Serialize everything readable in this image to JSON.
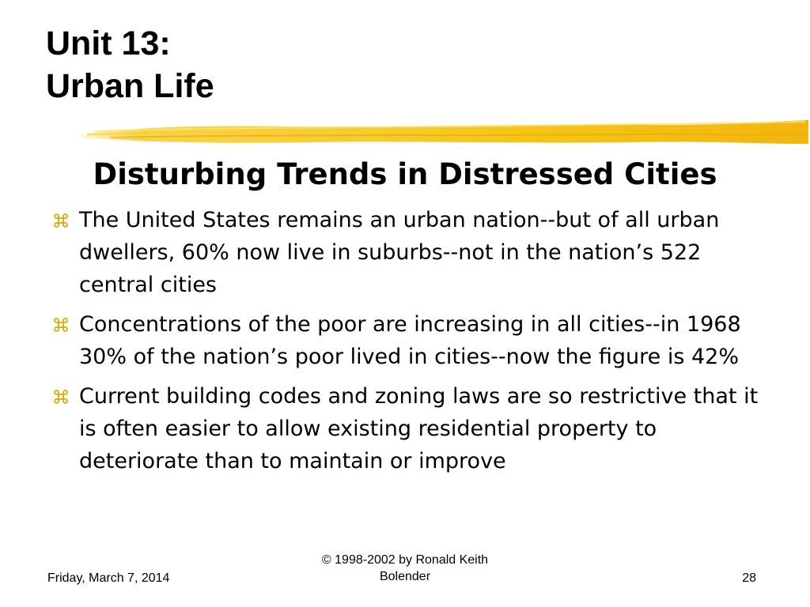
{
  "slide": {
    "title_line1": "Unit 13:",
    "title_line2": "Urban Life",
    "subtitle": "Disturbing Trends in Distressed Cities",
    "accent_color": "#f5c518",
    "bullet_icon": "command-key-icon",
    "bullets": [
      {
        "text": "The United States remains an urban nation--but of all urban dwellers, 60% now live in suburbs--not in the nation’s 522 central cities"
      },
      {
        "text": "Concentrations of the poor are increasing in all cities--in 1968 30% of the nation’s poor lived in cities--now the figure is 42%"
      },
      {
        "text": "Current building codes and zoning laws are so restrictive that it is often easier to allow existing residential property to deteriorate than to maintain or improve"
      }
    ]
  },
  "footer": {
    "date": "Friday, March 7, 2014",
    "copyright_line1": "© 1998-2002  by Ronald Keith",
    "copyright_line2": "Bolender",
    "page_number": "28"
  }
}
